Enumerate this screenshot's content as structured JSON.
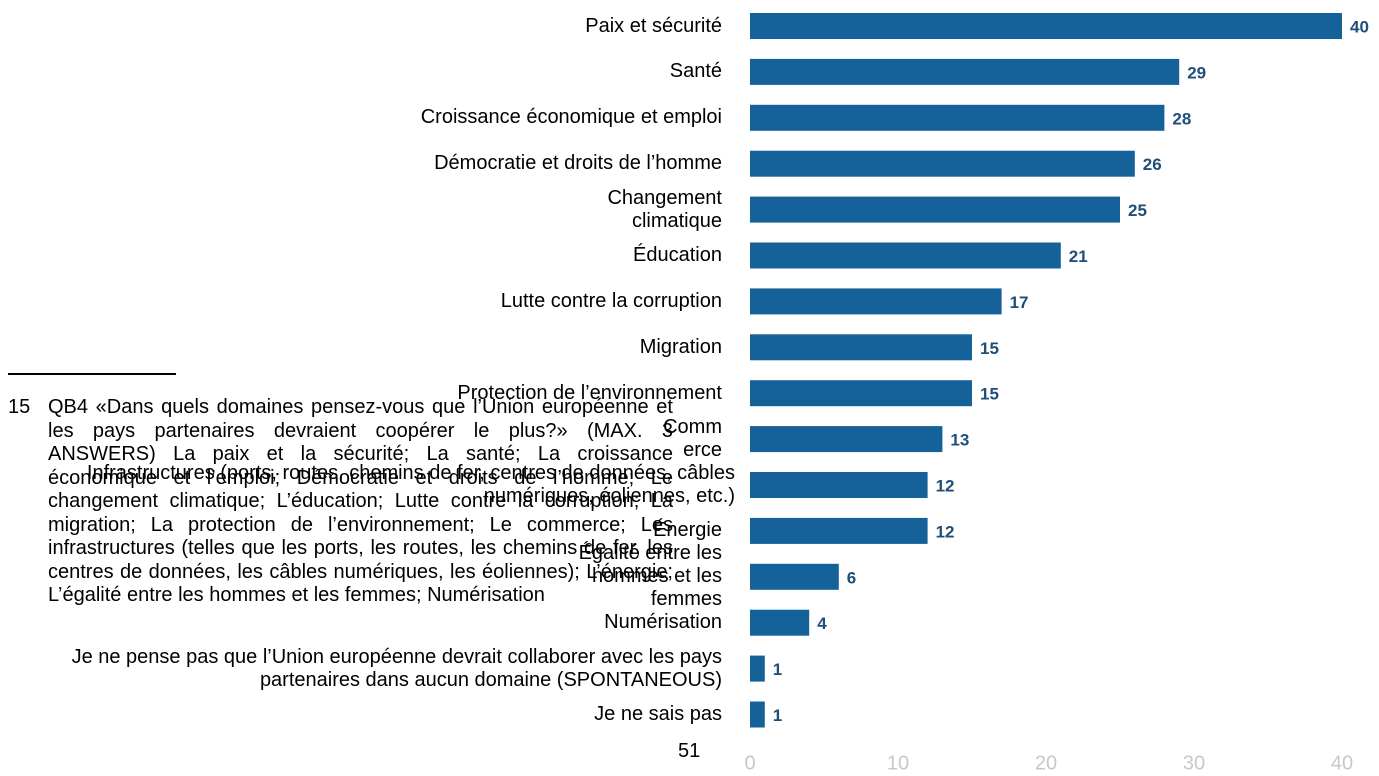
{
  "chart_data": {
    "type": "bar",
    "orientation": "horizontal",
    "categories": [
      "Paix et sécurité",
      "Santé",
      "Croissance économique et emploi",
      "Démocratie et droits de l’homme",
      "Changement climatique",
      "Éducation",
      "Lutte contre la corruption",
      "Migration",
      "Protection de l’environnement",
      "Commerce",
      "Infrastructures (ports, routes, chemins de fer, centres de données, câbles numériques, éoliennes, etc.)",
      "Énergie",
      "Égalité entre les hommes et les femmes",
      "Numérisation",
      "Je ne pense pas que l’Union européenne devrait collaborer avec les pays partenaires dans aucun domaine (SPONTANEOUS)",
      "Je ne sais pas"
    ],
    "values": [
      40,
      29,
      28,
      26,
      25,
      21,
      17,
      15,
      15,
      13,
      12,
      12,
      6,
      4,
      1,
      1
    ],
    "color": "#15629a",
    "xlim": [
      0,
      40
    ],
    "xticks": [
      0,
      10,
      20,
      30,
      40
    ]
  },
  "footnote": {
    "number": "15",
    "text": "QB4 «Dans quels domaines pensez-vous que l’Union européenne et les pays partenaires devraient coopérer le plus?» (MAX. 3 ANSWERS) La paix et la sécurité; La santé; La croissance économique et l’emploi; Démocratie et droits de l’homme; Le changement climatique; L’éducation; Lutte contre la corruption; La migration; La protection de l’environnement; Le commerce; Les infrastructures (telles que les ports, les routes, les chemins de fer, les centres de données, les câbles numériques, les éoliennes); L’énergie; L’égalité entre les hommes et les femmes; Numérisation"
  },
  "page_number": "51"
}
